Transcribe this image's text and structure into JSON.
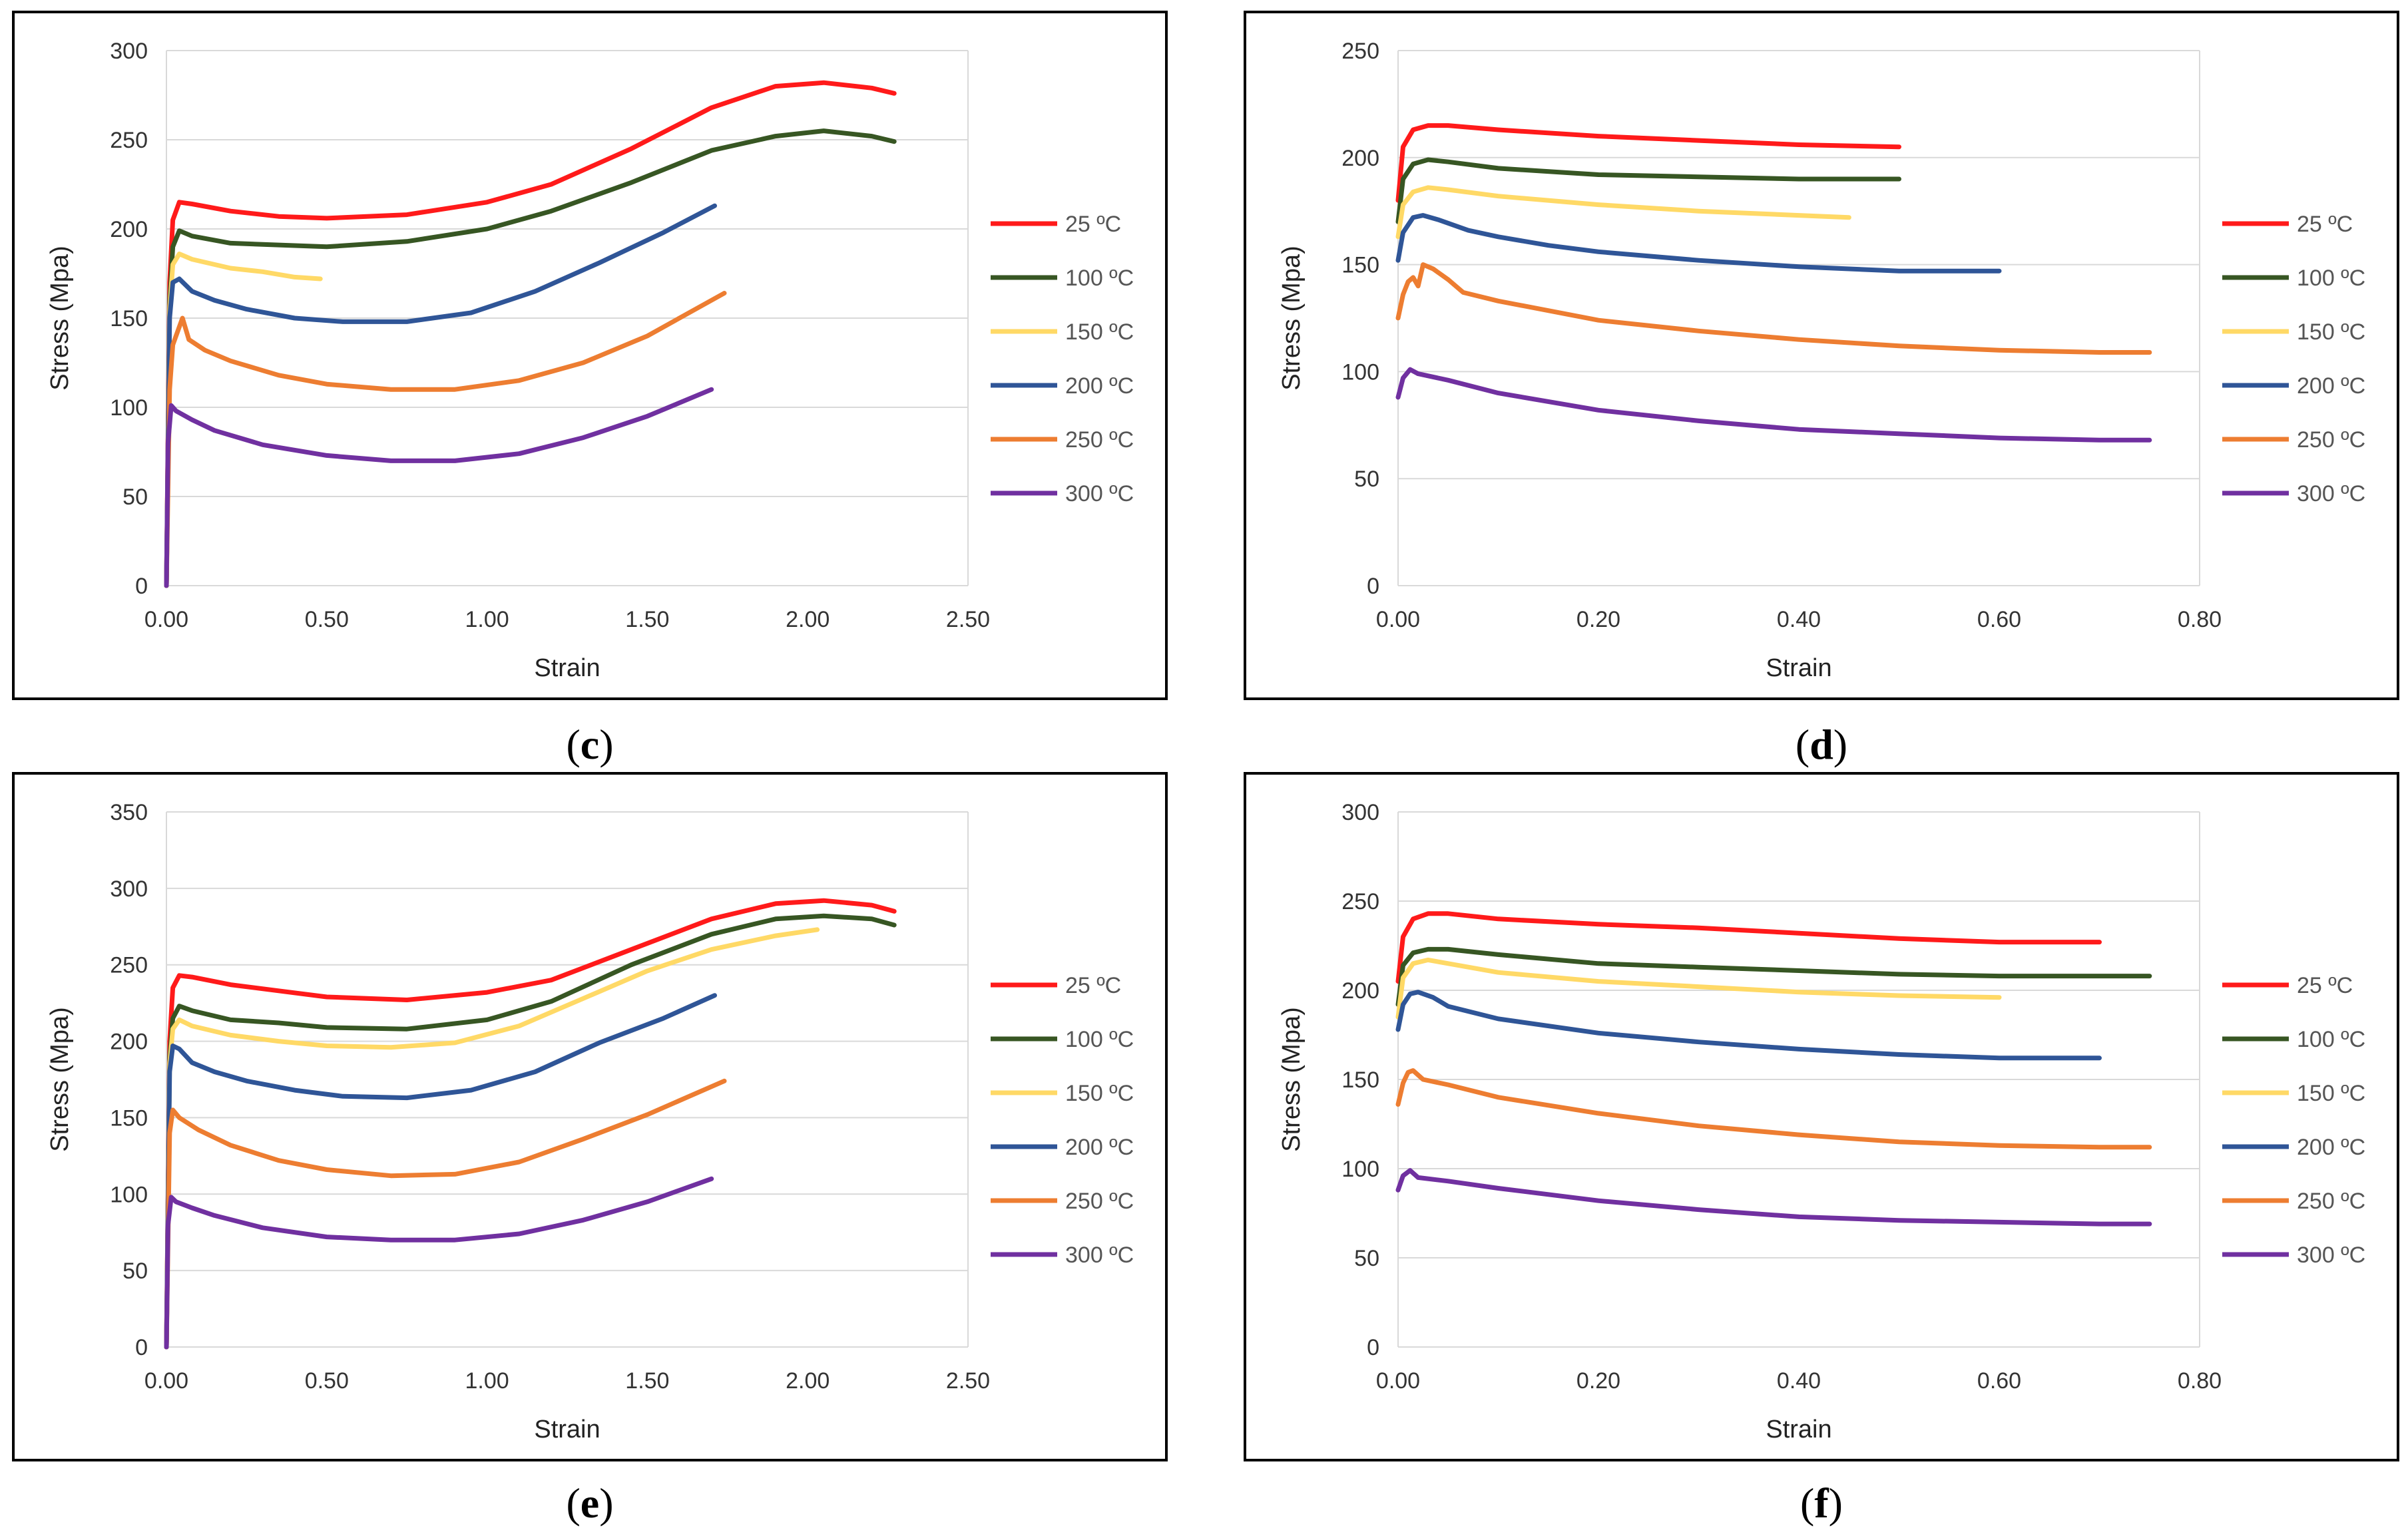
{
  "legend_labels": [
    "25 ºC",
    "100 ºC",
    "150 ºC",
    "200 ºC",
    "250 ºC",
    "300 ºC"
  ],
  "colors": [
    "#ff1a1a",
    "#375623",
    "#ffd966",
    "#2f5597",
    "#ed7d31",
    "#7030a0"
  ],
  "chart_data": [
    {
      "id": "c",
      "caption": "c",
      "type": "line",
      "xlabel": "Strain",
      "ylabel": "Stress (Mpa)",
      "xlim": [
        0,
        2.5
      ],
      "ylim": [
        0,
        300
      ],
      "xticks": [
        0,
        0.5,
        1.0,
        1.5,
        2.0,
        2.5
      ],
      "yticks": [
        0,
        50,
        100,
        150,
        200,
        250,
        300
      ],
      "xtick_labels": [
        "0.00",
        "0.50",
        "1.00",
        "1.50",
        "2.00",
        "2.50"
      ],
      "ytick_labels": [
        "0",
        "50",
        "100",
        "150",
        "200",
        "250",
        "300"
      ],
      "series": [
        {
          "name": "25 ºC",
          "x": [
            0,
            0.01,
            0.02,
            0.04,
            0.08,
            0.2,
            0.35,
            0.5,
            0.75,
            1.0,
            1.2,
            1.45,
            1.7,
            1.9,
            2.05,
            2.2,
            2.27
          ],
          "y": [
            0,
            170,
            205,
            215,
            214,
            210,
            207,
            206,
            208,
            215,
            225,
            245,
            268,
            280,
            282,
            279,
            276
          ]
        },
        {
          "name": "100 ºC",
          "x": [
            0,
            0.01,
            0.02,
            0.04,
            0.08,
            0.2,
            0.35,
            0.5,
            0.75,
            1.0,
            1.2,
            1.45,
            1.7,
            1.9,
            2.05,
            2.2,
            2.27
          ],
          "y": [
            0,
            160,
            190,
            199,
            196,
            192,
            191,
            190,
            193,
            200,
            210,
            226,
            244,
            252,
            255,
            252,
            249
          ]
        },
        {
          "name": "150 ºC",
          "x": [
            0,
            0.01,
            0.02,
            0.04,
            0.08,
            0.2,
            0.3,
            0.4,
            0.48
          ],
          "y": [
            0,
            155,
            180,
            186,
            183,
            178,
            176,
            173,
            172
          ]
        },
        {
          "name": "200 ºC",
          "x": [
            0,
            0.01,
            0.02,
            0.04,
            0.08,
            0.15,
            0.25,
            0.4,
            0.55,
            0.75,
            0.95,
            1.15,
            1.35,
            1.55,
            1.71
          ],
          "y": [
            0,
            150,
            170,
            172,
            165,
            160,
            155,
            150,
            148,
            148,
            153,
            165,
            181,
            198,
            213
          ]
        },
        {
          "name": "250 ºC",
          "x": [
            0,
            0.01,
            0.02,
            0.03,
            0.05,
            0.07,
            0.12,
            0.2,
            0.35,
            0.5,
            0.7,
            0.9,
            1.1,
            1.3,
            1.5,
            1.74
          ],
          "y": [
            0,
            110,
            135,
            140,
            150,
            138,
            132,
            126,
            118,
            113,
            110,
            110,
            115,
            125,
            140,
            164
          ]
        },
        {
          "name": "300 ºC",
          "x": [
            0,
            0.005,
            0.015,
            0.03,
            0.08,
            0.15,
            0.3,
            0.5,
            0.7,
            0.9,
            1.1,
            1.3,
            1.5,
            1.7
          ],
          "y": [
            0,
            80,
            101,
            98,
            93,
            87,
            79,
            73,
            70,
            70,
            74,
            83,
            95,
            110
          ]
        }
      ]
    },
    {
      "id": "d",
      "caption": "d",
      "type": "line",
      "xlabel": "Strain",
      "ylabel": "Stress (Mpa)",
      "xlim": [
        0,
        0.8
      ],
      "ylim": [
        0,
        250
      ],
      "xticks": [
        0,
        0.2,
        0.4,
        0.6,
        0.8
      ],
      "yticks": [
        0,
        50,
        100,
        150,
        200,
        250
      ],
      "xtick_labels": [
        "0.00",
        "0.20",
        "0.40",
        "0.60",
        "0.80"
      ],
      "ytick_labels": [
        "0",
        "50",
        "100",
        "150",
        "200",
        "250"
      ],
      "series": [
        {
          "name": "25 ºC",
          "x": [
            0,
            0.005,
            0.015,
            0.03,
            0.05,
            0.1,
            0.2,
            0.3,
            0.4,
            0.5
          ],
          "y": [
            180,
            205,
            213,
            215,
            215,
            213,
            210,
            208,
            206,
            205
          ]
        },
        {
          "name": "100 ºC",
          "x": [
            0,
            0.005,
            0.015,
            0.03,
            0.05,
            0.1,
            0.2,
            0.3,
            0.4,
            0.5
          ],
          "y": [
            170,
            190,
            197,
            199,
            198,
            195,
            192,
            191,
            190,
            190
          ]
        },
        {
          "name": "150 ºC",
          "x": [
            0,
            0.005,
            0.015,
            0.03,
            0.05,
            0.1,
            0.2,
            0.3,
            0.4,
            0.45
          ],
          "y": [
            163,
            178,
            184,
            186,
            185,
            182,
            178,
            175,
            173,
            172
          ]
        },
        {
          "name": "200 ºC",
          "x": [
            0,
            0.005,
            0.015,
            0.025,
            0.04,
            0.07,
            0.1,
            0.15,
            0.2,
            0.3,
            0.4,
            0.5,
            0.6
          ],
          "y": [
            152,
            165,
            172,
            173,
            171,
            166,
            163,
            159,
            156,
            152,
            149,
            147,
            147
          ]
        },
        {
          "name": "250 ºC",
          "x": [
            0,
            0.005,
            0.01,
            0.015,
            0.02,
            0.025,
            0.035,
            0.05,
            0.065,
            0.1,
            0.2,
            0.3,
            0.4,
            0.5,
            0.6,
            0.7,
            0.75
          ],
          "y": [
            125,
            136,
            142,
            144,
            140,
            150,
            148,
            143,
            137,
            133,
            124,
            119,
            115,
            112,
            110,
            109,
            109
          ]
        },
        {
          "name": "300 ºC",
          "x": [
            0,
            0.005,
            0.012,
            0.02,
            0.05,
            0.1,
            0.2,
            0.3,
            0.4,
            0.5,
            0.6,
            0.7,
            0.75
          ],
          "y": [
            88,
            97,
            101,
            99,
            96,
            90,
            82,
            77,
            73,
            71,
            69,
            68,
            68
          ]
        }
      ]
    },
    {
      "id": "e",
      "caption": "e",
      "type": "line",
      "xlabel": "Strain",
      "ylabel": "Stress (Mpa)",
      "xlim": [
        0,
        2.5
      ],
      "ylim": [
        0,
        350
      ],
      "xticks": [
        0,
        0.5,
        1.0,
        1.5,
        2.0,
        2.5
      ],
      "yticks": [
        0,
        50,
        100,
        150,
        200,
        250,
        300,
        350
      ],
      "xtick_labels": [
        "0.00",
        "0.50",
        "1.00",
        "1.50",
        "2.00",
        "2.50"
      ],
      "ytick_labels": [
        "0",
        "50",
        "100",
        "150",
        "200",
        "250",
        "300",
        "350"
      ],
      "series": [
        {
          "name": "25 ºC",
          "x": [
            0,
            0.01,
            0.02,
            0.04,
            0.08,
            0.2,
            0.35,
            0.5,
            0.75,
            1.0,
            1.2,
            1.45,
            1.7,
            1.9,
            2.05,
            2.2,
            2.27
          ],
          "y": [
            0,
            200,
            235,
            243,
            242,
            237,
            233,
            229,
            227,
            232,
            240,
            260,
            280,
            290,
            292,
            289,
            285
          ]
        },
        {
          "name": "100 ºC",
          "x": [
            0,
            0.01,
            0.02,
            0.04,
            0.08,
            0.2,
            0.35,
            0.5,
            0.75,
            1.0,
            1.2,
            1.45,
            1.7,
            1.9,
            2.05,
            2.2,
            2.27
          ],
          "y": [
            0,
            190,
            215,
            223,
            220,
            214,
            212,
            209,
            208,
            214,
            226,
            250,
            270,
            280,
            282,
            280,
            276
          ]
        },
        {
          "name": "150 ºC",
          "x": [
            0,
            0.01,
            0.02,
            0.04,
            0.08,
            0.2,
            0.35,
            0.5,
            0.7,
            0.9,
            1.1,
            1.3,
            1.5,
            1.7,
            1.9,
            2.03
          ],
          "y": [
            0,
            185,
            208,
            214,
            210,
            204,
            200,
            197,
            196,
            199,
            210,
            228,
            246,
            260,
            269,
            273
          ]
        },
        {
          "name": "200 ºC",
          "x": [
            0,
            0.01,
            0.02,
            0.04,
            0.08,
            0.15,
            0.25,
            0.4,
            0.55,
            0.75,
            0.95,
            1.15,
            1.35,
            1.55,
            1.71
          ],
          "y": [
            0,
            180,
            197,
            195,
            186,
            180,
            174,
            168,
            164,
            163,
            168,
            180,
            199,
            215,
            230
          ]
        },
        {
          "name": "250 ºC",
          "x": [
            0,
            0.01,
            0.02,
            0.04,
            0.1,
            0.2,
            0.35,
            0.5,
            0.7,
            0.9,
            1.1,
            1.3,
            1.5,
            1.74
          ],
          "y": [
            0,
            140,
            155,
            150,
            142,
            132,
            122,
            116,
            112,
            113,
            121,
            136,
            152,
            174
          ]
        },
        {
          "name": "300 ºC",
          "x": [
            0,
            0.005,
            0.015,
            0.03,
            0.08,
            0.15,
            0.3,
            0.5,
            0.7,
            0.9,
            1.1,
            1.3,
            1.5,
            1.7
          ],
          "y": [
            0,
            80,
            98,
            95,
            91,
            86,
            78,
            72,
            70,
            70,
            74,
            83,
            95,
            110
          ]
        }
      ]
    },
    {
      "id": "f",
      "caption": "f",
      "type": "line",
      "xlabel": "Strain",
      "ylabel": "Stress (Mpa)",
      "xlim": [
        0,
        0.8
      ],
      "ylim": [
        0,
        300
      ],
      "xticks": [
        0,
        0.2,
        0.4,
        0.6,
        0.8
      ],
      "yticks": [
        0,
        50,
        100,
        150,
        200,
        250,
        300
      ],
      "xtick_labels": [
        "0.00",
        "0.20",
        "0.40",
        "0.60",
        "0.80"
      ],
      "ytick_labels": [
        "0",
        "50",
        "100",
        "150",
        "200",
        "250",
        "300"
      ],
      "series": [
        {
          "name": "25 ºC",
          "x": [
            0,
            0.005,
            0.015,
            0.03,
            0.05,
            0.1,
            0.2,
            0.3,
            0.4,
            0.5,
            0.6,
            0.7
          ],
          "y": [
            205,
            230,
            240,
            243,
            243,
            240,
            237,
            235,
            232,
            229,
            227,
            227
          ]
        },
        {
          "name": "100 ºC",
          "x": [
            0,
            0.005,
            0.015,
            0.03,
            0.05,
            0.1,
            0.2,
            0.3,
            0.4,
            0.5,
            0.6,
            0.75
          ],
          "y": [
            192,
            214,
            221,
            223,
            223,
            220,
            215,
            213,
            211,
            209,
            208,
            208
          ]
        },
        {
          "name": "150 ºC",
          "x": [
            0,
            0.005,
            0.015,
            0.03,
            0.05,
            0.1,
            0.2,
            0.3,
            0.4,
            0.5,
            0.6
          ],
          "y": [
            185,
            207,
            215,
            217,
            215,
            210,
            205,
            202,
            199,
            197,
            196
          ]
        },
        {
          "name": "200 ºC",
          "x": [
            0,
            0.005,
            0.012,
            0.02,
            0.035,
            0.05,
            0.1,
            0.2,
            0.3,
            0.4,
            0.5,
            0.6,
            0.7
          ],
          "y": [
            178,
            192,
            198,
            199,
            196,
            191,
            184,
            176,
            171,
            167,
            164,
            162,
            162
          ]
        },
        {
          "name": "250 ºC",
          "x": [
            0,
            0.005,
            0.01,
            0.015,
            0.025,
            0.05,
            0.1,
            0.2,
            0.3,
            0.4,
            0.5,
            0.6,
            0.7,
            0.75
          ],
          "y": [
            136,
            148,
            154,
            155,
            150,
            147,
            140,
            131,
            124,
            119,
            115,
            113,
            112,
            112
          ]
        },
        {
          "name": "300 ºC",
          "x": [
            0,
            0.005,
            0.012,
            0.02,
            0.05,
            0.1,
            0.2,
            0.3,
            0.4,
            0.5,
            0.6,
            0.7,
            0.75
          ],
          "y": [
            88,
            96,
            99,
            95,
            93,
            89,
            82,
            77,
            73,
            71,
            70,
            69,
            69
          ]
        }
      ]
    }
  ]
}
